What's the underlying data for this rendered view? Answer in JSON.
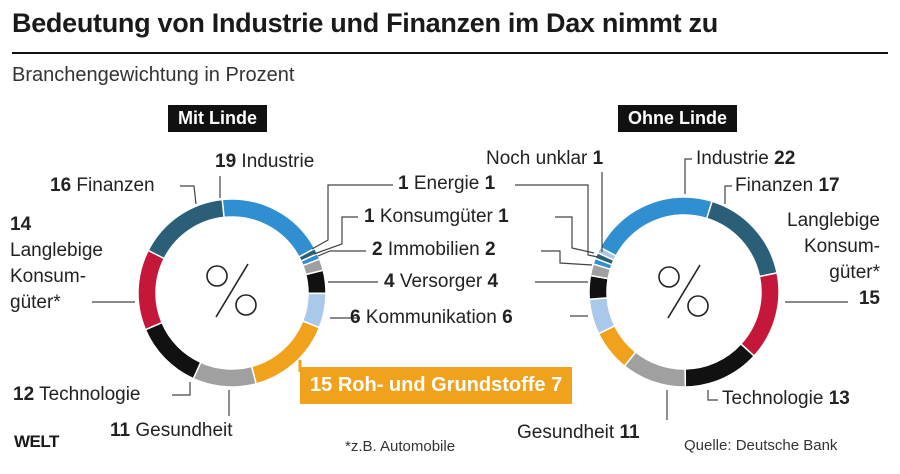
{
  "title": "Bedeutung von Industrie und Finanzen im Dax nimmt zu",
  "subtitle": "Branchengewichtung in Prozent",
  "footnote": "*z.B. Automobile",
  "source": "Quelle: Deutsche Bank",
  "logo": "WELT",
  "center_symbol": "%",
  "chart_data": [
    {
      "type": "pie",
      "subtype": "donut",
      "title": "Mit Linde",
      "categories": [
        "Industrie",
        "Energie",
        "Konsumgüter",
        "Immobilien",
        "Versorger",
        "Kommunikation",
        "Roh- und Grundstoffe",
        "Gesundheit",
        "Technologie",
        "Langlebige Konsumgüter*",
        "Finanzen"
      ],
      "values": [
        19,
        1,
        1,
        2,
        4,
        6,
        15,
        11,
        12,
        14,
        16
      ],
      "colors": [
        "#2f8fd0",
        "#2b5f78",
        "#2f8fd0",
        "#a0a0a0",
        "#111111",
        "#a9c8ea",
        "#f0a21c",
        "#a0a0a0",
        "#111111",
        "#c4173a",
        "#2b5f78"
      ]
    },
    {
      "type": "pie",
      "subtype": "donut",
      "title": "Ohne Linde",
      "categories": [
        "Industrie",
        "Finanzen",
        "Langlebige Konsumgüter*",
        "Technologie",
        "Gesundheit",
        "Roh- und Grundstoffe",
        "Kommunikation",
        "Versorger",
        "Immobilien",
        "Konsumgüter",
        "Energie",
        "Noch unklar"
      ],
      "values": [
        22,
        17,
        15,
        13,
        11,
        7,
        6,
        4,
        2,
        1,
        1,
        1
      ],
      "colors": [
        "#2f8fd0",
        "#2b5f78",
        "#c4173a",
        "#111111",
        "#a0a0a0",
        "#f0a21c",
        "#a9c8ea",
        "#111111",
        "#a0a0a0",
        "#2f8fd0",
        "#2b5f78",
        "#a9c8ea"
      ]
    }
  ],
  "labels": {
    "left": {
      "industrie": [
        "19",
        "Industrie"
      ],
      "finanzen": [
        "16",
        "Finanzen"
      ],
      "langlebige": [
        "14",
        "Langlebige",
        "Konsum-",
        "güter*"
      ],
      "technologie": [
        "12",
        "Technologie"
      ],
      "gesundheit": [
        "11",
        "Gesundheit"
      ]
    },
    "right": {
      "noch_unklar": [
        "Noch unklar",
        "1"
      ],
      "industrie": [
        "Industrie",
        "22"
      ],
      "finanzen": [
        "Finanzen",
        "17"
      ],
      "langlebige": [
        "Langlebige",
        "Konsum-",
        "güter*",
        "15"
      ],
      "technologie": [
        "Technologie",
        "13"
      ],
      "gesundheit": [
        "Gesundheit",
        "11"
      ]
    },
    "shared": [
      {
        "left": "1",
        "name": "Energie",
        "right": "1"
      },
      {
        "left": "1",
        "name": "Konsumgüter",
        "right": "1"
      },
      {
        "left": "2",
        "name": "Immobilien",
        "right": "2"
      },
      {
        "left": "4",
        "name": "Versorger",
        "right": "4"
      },
      {
        "left": "6",
        "name": "Kommunikation",
        "right": "6"
      },
      {
        "left": "15",
        "name": "Roh- und Grundstoffe",
        "right": "7"
      }
    ]
  }
}
